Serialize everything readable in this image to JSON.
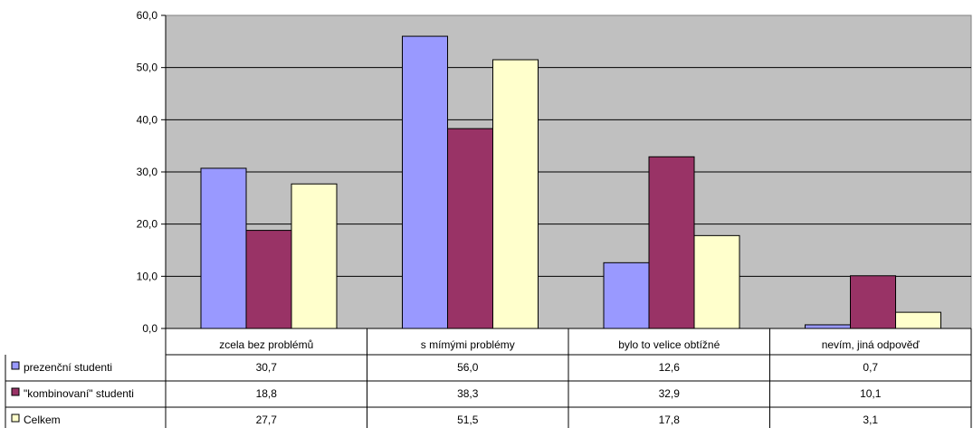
{
  "chart_data": {
    "type": "bar",
    "categories": [
      "zcela bez problémů",
      "s mímými problémy",
      "bylo to velice obtížné",
      "nevím, jiná odpověď"
    ],
    "series": [
      {
        "name": "prezenční studenti",
        "values": [
          30.7,
          56.0,
          12.6,
          0.7
        ],
        "color": "#9999ff"
      },
      {
        "name": "\"kombinovaní\" studenti",
        "values": [
          18.8,
          38.3,
          32.9,
          10.1
        ],
        "color": "#993366"
      },
      {
        "name": "Celkem",
        "values": [
          27.7,
          51.5,
          17.8,
          3.1
        ],
        "color": "#ffffcc"
      }
    ],
    "ylim": [
      0,
      60
    ],
    "yticks": [
      "0,0",
      "10,0",
      "20,0",
      "30,0",
      "40,0",
      "50,0",
      "60,0"
    ],
    "table_values": [
      [
        "30,7",
        "56,0",
        "12,6",
        "0,7"
      ],
      [
        "18,8",
        "38,3",
        "32,9",
        "10,1"
      ],
      [
        "27,7",
        "51,5",
        "17,8",
        "3,1"
      ]
    ],
    "plot_background": "#c0c0c0",
    "grid": true,
    "legend": "data table rows"
  }
}
